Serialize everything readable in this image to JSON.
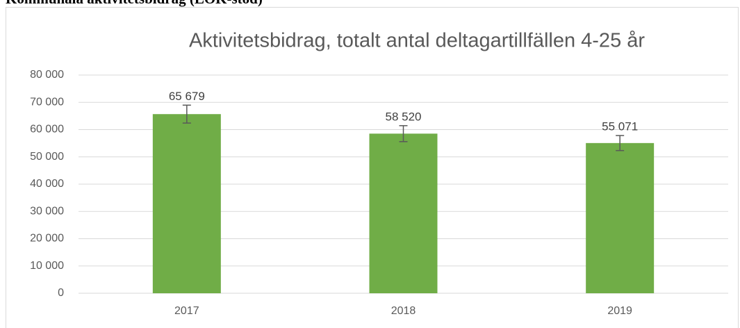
{
  "page_header": "Kommunala aktivitetsbidrag (LOK-stöd)",
  "chart_data": {
    "type": "bar",
    "title": "Aktivitetsbidrag, totalt antal deltagartillfällen 4-25 år",
    "categories": [
      "2017",
      "2018",
      "2019"
    ],
    "values": [
      65679,
      58520,
      55071
    ],
    "value_labels": [
      "65 679",
      "58 520",
      "55 071"
    ],
    "errors": [
      3284,
      2926,
      2754
    ],
    "color": "#70ad47",
    "ylim": [
      0,
      80000
    ],
    "yticks": [
      0,
      {
        "value": 10000,
        "label": "10 000"
      },
      {
        "value": 20000,
        "label": "20 000"
      },
      {
        "value": 30000,
        "label": "30 000"
      },
      {
        "value": 40000,
        "label": "40 000"
      },
      {
        "value": 50000,
        "label": "50 000"
      },
      {
        "value": 60000,
        "label": "60 000"
      },
      {
        "value": 70000,
        "label": "70 000"
      },
      {
        "value": 80000,
        "label": "80 000"
      }
    ],
    "grid": true
  }
}
